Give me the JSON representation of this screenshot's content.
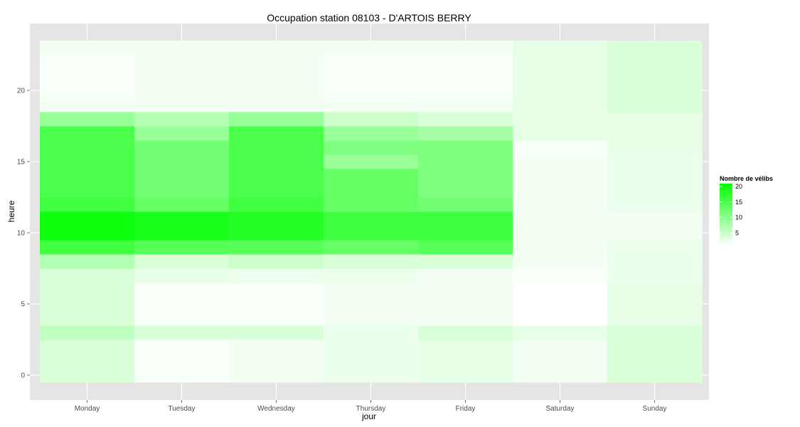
{
  "chart_data": {
    "type": "heatmap",
    "title": "Occupation station 08103 - D'ARTOIS BERRY",
    "xlabel": "jour",
    "ylabel": "heure",
    "x_categories": [
      "Monday",
      "Tuesday",
      "Wednesday",
      "Thursday",
      "Friday",
      "Saturday",
      "Sunday"
    ],
    "y_values": [
      0,
      1,
      2,
      3,
      4,
      5,
      6,
      7,
      8,
      9,
      10,
      11,
      12,
      13,
      14,
      15,
      16,
      17,
      18,
      19,
      20,
      21,
      22,
      23
    ],
    "y_ticks": [
      0,
      5,
      10,
      15,
      20
    ],
    "ylim": [
      -0.5,
      23.5
    ],
    "grid": true,
    "legend": {
      "title": "Nombre de vélibs",
      "position": "right",
      "ticks": [
        5,
        10,
        15,
        20
      ],
      "min": 0,
      "max": 20,
      "low_color": "#ffffff",
      "high_color": "#00ff00"
    },
    "colors": {
      "panel_background": "#e5e5e5",
      "grid_line": "#ffffff",
      "tick_label": "#4d4d4d"
    },
    "values": [
      [
        3,
        0.5,
        1,
        1.5,
        2,
        1,
        3
      ],
      [
        3,
        0.5,
        1,
        1.5,
        2,
        1,
        3
      ],
      [
        3,
        0.5,
        1,
        1.5,
        2,
        1,
        3
      ],
      [
        5,
        3,
        3,
        1.5,
        3,
        2,
        3
      ],
      [
        3,
        0.5,
        0.5,
        1,
        1,
        0,
        2
      ],
      [
        3,
        0.5,
        0.5,
        1,
        1,
        0,
        2
      ],
      [
        3,
        0.5,
        0.5,
        1,
        1,
        0,
        2
      ],
      [
        3,
        2,
        1.5,
        1.5,
        1,
        0.5,
        1.5
      ],
      [
        6,
        3,
        4,
        3,
        3,
        1,
        1.5
      ],
      [
        15,
        13,
        13,
        12,
        13,
        1,
        1.5
      ],
      [
        19,
        18,
        17,
        15,
        15,
        1,
        1
      ],
      [
        19,
        18,
        17,
        15,
        15,
        1,
        1
      ],
      [
        15,
        12,
        15,
        12,
        11,
        1,
        1.5
      ],
      [
        14,
        11,
        14,
        12,
        10,
        1,
        1.5
      ],
      [
        14,
        11,
        14,
        12,
        10,
        1,
        1.5
      ],
      [
        14,
        11,
        14,
        8,
        10,
        1,
        1.5
      ],
      [
        14,
        11,
        14,
        10,
        10,
        0.5,
        2
      ],
      [
        14,
        8,
        14,
        8,
        7,
        2,
        2
      ],
      [
        8,
        6,
        8,
        4,
        3,
        2,
        2
      ],
      [
        1,
        1,
        1,
        1,
        1,
        2,
        3
      ],
      [
        0.5,
        1,
        1,
        0.5,
        0.5,
        2,
        3
      ],
      [
        0.5,
        1,
        1,
        0.5,
        0.5,
        2,
        3
      ],
      [
        0.5,
        1,
        1,
        0.5,
        0.5,
        2,
        3
      ],
      [
        1,
        1,
        1,
        1,
        1,
        2,
        3
      ]
    ]
  }
}
